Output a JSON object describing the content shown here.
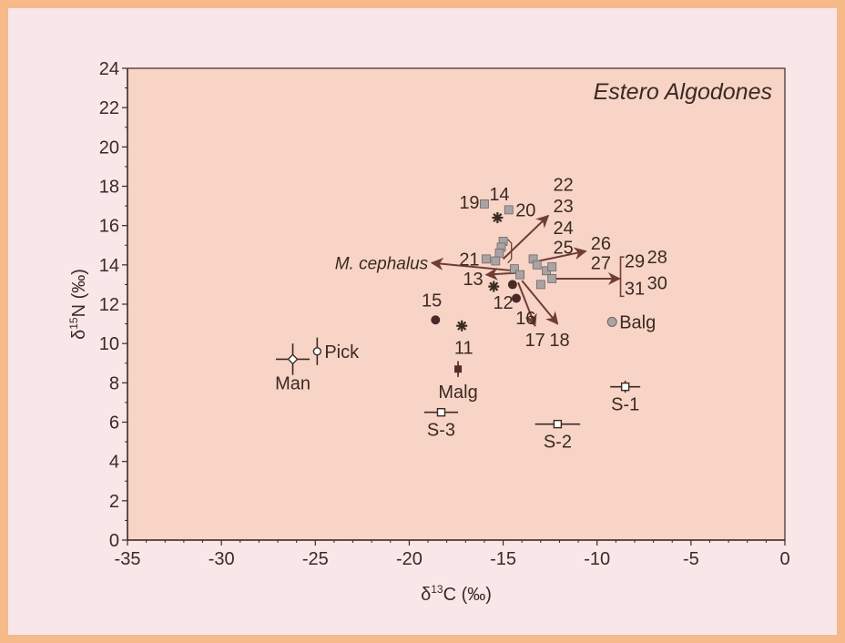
{
  "chart_data": {
    "type": "scatter",
    "title": "Estero Algodones",
    "xlabel": "δ13C (‰)",
    "ylabel": "δ15N (‰)",
    "xlim": [
      -35,
      0
    ],
    "ylim": [
      0,
      24
    ],
    "xticks": [
      -35,
      -30,
      -25,
      -20,
      -15,
      -10,
      -5,
      0
    ],
    "yticks": [
      0,
      2,
      4,
      6,
      8,
      10,
      12,
      14,
      16,
      18,
      20,
      22,
      24
    ],
    "xtick_labels": [
      "-35",
      "-30",
      "-25",
      "-20",
      "-15",
      "-10",
      "-5",
      "0"
    ],
    "ytick_labels": [
      "0",
      "2",
      "4",
      "6",
      "8",
      "10",
      "12",
      "14",
      "16",
      "18",
      "20",
      "22",
      "24"
    ],
    "grid": false,
    "background": "#f7d4c6",
    "colors": {
      "outer": "#f6b98a",
      "inner": "#f8e6e9",
      "plot": "#f7d4c6",
      "ink": "#3a2a22",
      "square": "#a9a3a4",
      "arrow": "#6e3d35"
    },
    "groups": [
      {
        "marker": "grey-square",
        "points": [
          {
            "x": -16.0,
            "y": 17.1
          },
          {
            "x": -14.7,
            "y": 16.8
          },
          {
            "x": -15.0,
            "y": 15.2
          },
          {
            "x": -15.1,
            "y": 14.9
          },
          {
            "x": -15.2,
            "y": 14.6
          },
          {
            "x": -15.9,
            "y": 14.3
          },
          {
            "x": -15.4,
            "y": 14.2
          },
          {
            "x": -13.4,
            "y": 14.3
          },
          {
            "x": -13.2,
            "y": 14.0
          },
          {
            "x": -14.4,
            "y": 13.8
          },
          {
            "x": -14.1,
            "y": 13.5
          },
          {
            "x": -12.7,
            "y": 13.7
          },
          {
            "x": -12.4,
            "y": 13.9
          },
          {
            "x": -12.4,
            "y": 13.3
          },
          {
            "x": -13.0,
            "y": 13.0
          }
        ]
      },
      {
        "marker": "asterisk",
        "points": [
          {
            "x": -15.3,
            "y": 16.4,
            "label": "14"
          },
          {
            "x": -15.5,
            "y": 12.9,
            "label": "13"
          },
          {
            "x": -17.2,
            "y": 10.9,
            "label": "11"
          }
        ]
      },
      {
        "marker": "filled-circle",
        "points": [
          {
            "x": -18.6,
            "y": 11.2,
            "label": "15"
          },
          {
            "x": -14.5,
            "y": 13.0,
            "label": "12"
          },
          {
            "x": -14.3,
            "y": 12.3,
            "label": "16"
          },
          {
            "x": -9.2,
            "y": 11.1,
            "label": "Balg",
            "grey": true
          }
        ]
      },
      {
        "marker": "open-symbol-with-error-bars",
        "points": [
          {
            "x": -26.2,
            "y": 9.2,
            "label": "Man",
            "shape": "diamond",
            "xerr": 0.9,
            "yerr": 0.8
          },
          {
            "x": -24.9,
            "y": 9.6,
            "label": "Pick",
            "shape": "circle",
            "xerr": 0.2,
            "yerr": 0.7
          },
          {
            "x": -8.5,
            "y": 7.8,
            "label": "S-1",
            "shape": "square",
            "xerr": 0.8,
            "yerr": 0.3
          },
          {
            "x": -12.1,
            "y": 5.9,
            "label": "S-2",
            "shape": "square",
            "xerr": 1.2,
            "yerr": 0.2
          },
          {
            "x": -18.3,
            "y": 6.5,
            "label": "S-3",
            "shape": "square",
            "xerr": 0.9,
            "yerr": 0.2
          },
          {
            "x": -17.4,
            "y": 8.7,
            "label": "Malg",
            "shape": "filled-square",
            "xerr": 0.1,
            "yerr": 0.4
          }
        ]
      }
    ],
    "arrows": [
      {
        "from": [
          -14.4,
          13.7
        ],
        "to": [
          -18.8,
          14.1
        ],
        "label": "M. cephalus"
      },
      {
        "from": [
          -15.0,
          14.3
        ],
        "to": [
          -12.6,
          16.5
        ]
      },
      {
        "from": [
          -13.1,
          14.2
        ],
        "to": [
          -10.6,
          14.7
        ]
      },
      {
        "from": [
          -14.2,
          13.6
        ],
        "to": [
          -15.9,
          13.5
        ]
      },
      {
        "from": [
          -12.4,
          13.3
        ],
        "to": [
          -8.8,
          13.3
        ]
      },
      {
        "from": [
          -14.2,
          13.1
        ],
        "to": [
          -13.3,
          10.9
        ]
      },
      {
        "from": [
          -14.0,
          13.2
        ],
        "to": [
          -12.1,
          11.0
        ]
      }
    ],
    "annotations": [
      {
        "text": "19",
        "x": -16.8,
        "y": 17.2
      },
      {
        "text": "14",
        "x": -15.2,
        "y": 17.6
      },
      {
        "text": "20",
        "x": -13.8,
        "y": 16.8
      },
      {
        "text": "22",
        "x": -11.8,
        "y": 18.1
      },
      {
        "text": "23",
        "x": -11.8,
        "y": 17.0
      },
      {
        "text": "24",
        "x": -11.8,
        "y": 15.9
      },
      {
        "text": "25",
        "x": -11.8,
        "y": 14.9
      },
      {
        "text": "26",
        "x": -9.8,
        "y": 15.1
      },
      {
        "text": "27",
        "x": -9.8,
        "y": 14.1
      },
      {
        "text": "21",
        "x": -16.8,
        "y": 14.3
      },
      {
        "text": "13",
        "x": -16.6,
        "y": 13.3
      },
      {
        "text": "12",
        "x": -15.0,
        "y": 12.1
      },
      {
        "text": "16",
        "x": -13.8,
        "y": 11.3
      },
      {
        "text": "17",
        "x": -13.3,
        "y": 10.2
      },
      {
        "text": "18",
        "x": -12.0,
        "y": 10.2
      },
      {
        "text": "15",
        "x": -18.8,
        "y": 12.2
      },
      {
        "text": "11",
        "x": -17.1,
        "y": 9.8
      },
      {
        "text": "29",
        "x": -8.0,
        "y": 14.2
      },
      {
        "text": "28",
        "x": -6.8,
        "y": 14.4
      },
      {
        "text": "31",
        "x": -8.0,
        "y": 12.8
      },
      {
        "text": "30",
        "x": -6.8,
        "y": 13.1
      }
    ]
  }
}
